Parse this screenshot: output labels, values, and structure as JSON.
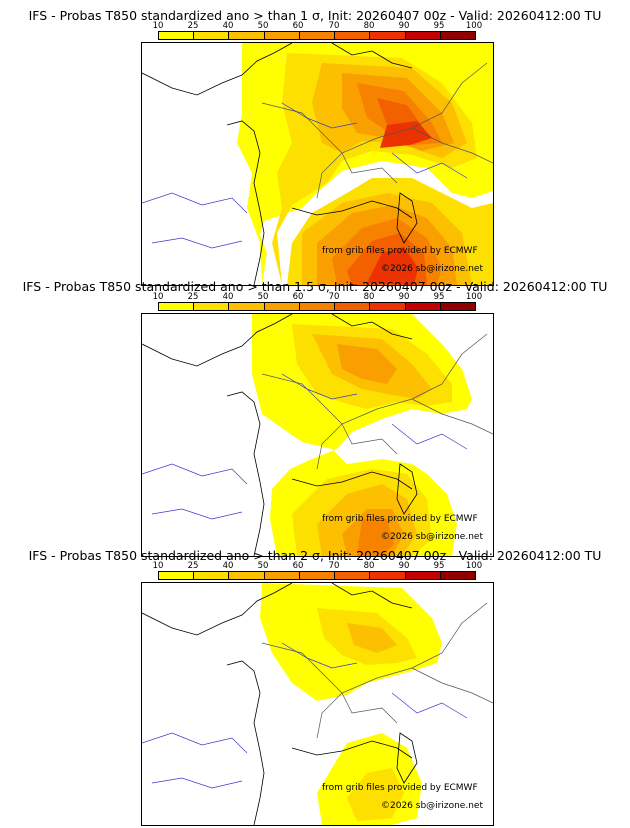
{
  "colorbar": {
    "ticks": [
      "10",
      "25",
      "40",
      "50",
      "60",
      "70",
      "80",
      "90",
      "95",
      "100"
    ],
    "colors": [
      "#ffff00",
      "#fde000",
      "#fcc000",
      "#f9a000",
      "#f78200",
      "#f26000",
      "#eb3200",
      "#c40000",
      "#900000"
    ]
  },
  "panels": [
    {
      "title": "IFS - Probas T850  standardized ano > than 1 σ, Init: 20260407 00z - Valid: 20260412:00 TU",
      "credit": "from grib files provided by ECMWF",
      "copyright": "©2026 sb@irizone.net"
    },
    {
      "title": "IFS - Probas T850  standardized ano > than 1.5 σ, Init: 20260407 00z - Valid: 20260412:00 TU",
      "credit": "from grib files provided by ECMWF",
      "copyright": "©2026 sb@irizone.net"
    },
    {
      "title": "IFS - Probas T850  standardized ano > than 2 σ, Init: 20260407 00z - Valid: 20260412:00 TU",
      "credit": "from grib files provided by ECMWF",
      "copyright": "©2026 sb@irizone.net"
    }
  ]
}
